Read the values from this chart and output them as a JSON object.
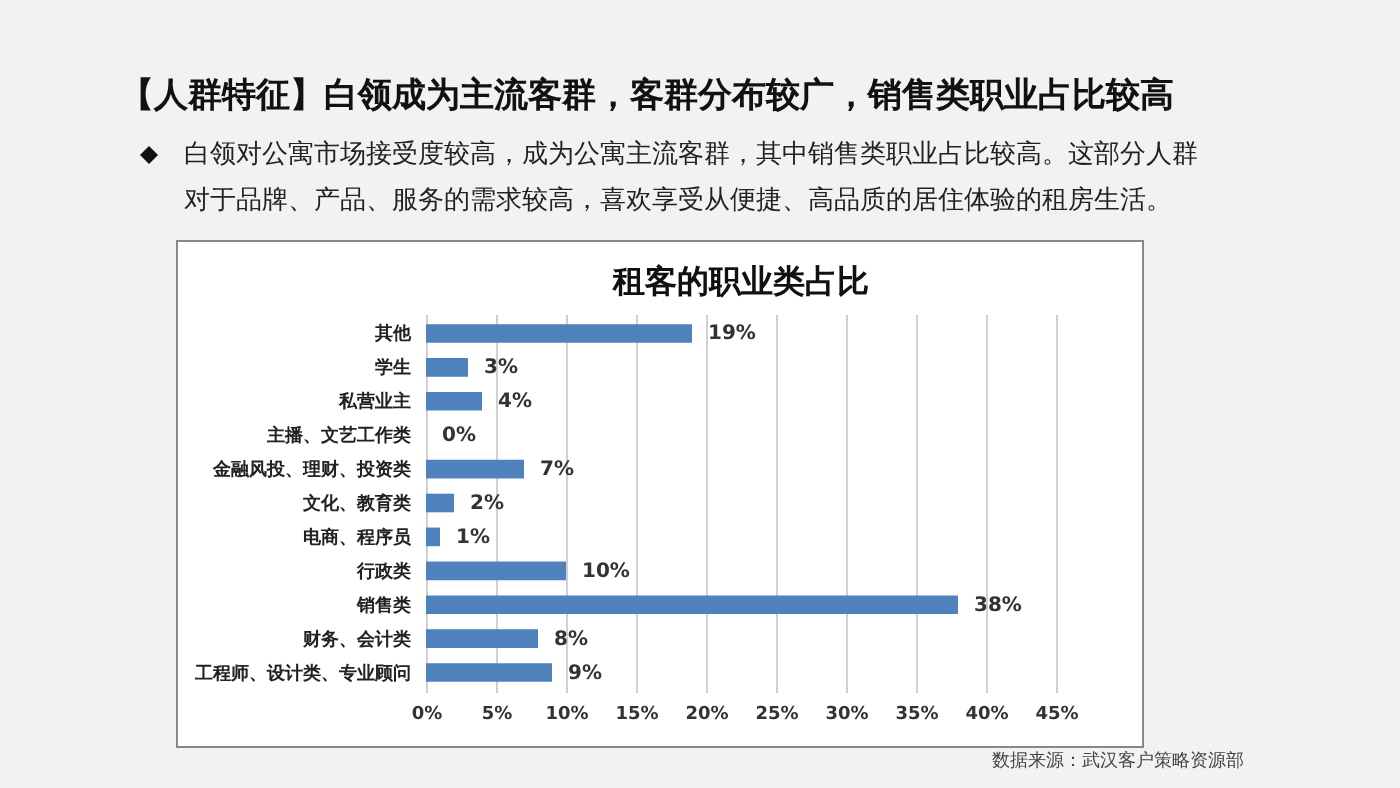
{
  "chart_data": {
    "type": "bar",
    "orientation": "horizontal",
    "title": "租客的职业类占比",
    "subtitle": "【人群特征】白领成为主流客群，客群分布较广，销售类职业占比较高",
    "annotations": [
      "白领对公寓市场接受度较高，成为公寓主流客群，其中销售类职业占比较高。这部分人群对于品牌、产品、服务的需求较高，喜欢享受从便捷、高品质的居住体验的租房生活。",
      "数据来源：武汉客户策略资源部"
    ],
    "categories": [
      "其他",
      "学生",
      "私营业主",
      "主播、文艺工作类",
      "金融风投、理财、投资类",
      "文化、教育类",
      "电商、程序员",
      "行政类",
      "销售类",
      "财务、会计类",
      "工程师、设计类、专业顾问"
    ],
    "values": [
      19,
      3,
      4,
      0,
      7,
      2,
      1,
      10,
      38,
      8,
      9
    ],
    "value_labels": [
      "19%",
      "3%",
      "4%",
      "0%",
      "7%",
      "2%",
      "1%",
      "10%",
      "38%",
      "8%",
      "9%"
    ],
    "color": "#4f81bd",
    "xlim": [
      0,
      45
    ],
    "xticks": [
      {
        "value": 0,
        "label": "0%"
      },
      {
        "value": 5,
        "label": "5%"
      },
      {
        "value": 10,
        "label": "10%"
      },
      {
        "value": 15,
        "label": "15%"
      },
      {
        "value": 20,
        "label": "20%"
      },
      {
        "value": 25,
        "label": "25%"
      },
      {
        "value": 30,
        "label": "30%"
      },
      {
        "value": 35,
        "label": "35%"
      },
      {
        "value": 40,
        "label": "40%"
      },
      {
        "value": 45,
        "label": "45%"
      }
    ],
    "grid": "x"
  }
}
